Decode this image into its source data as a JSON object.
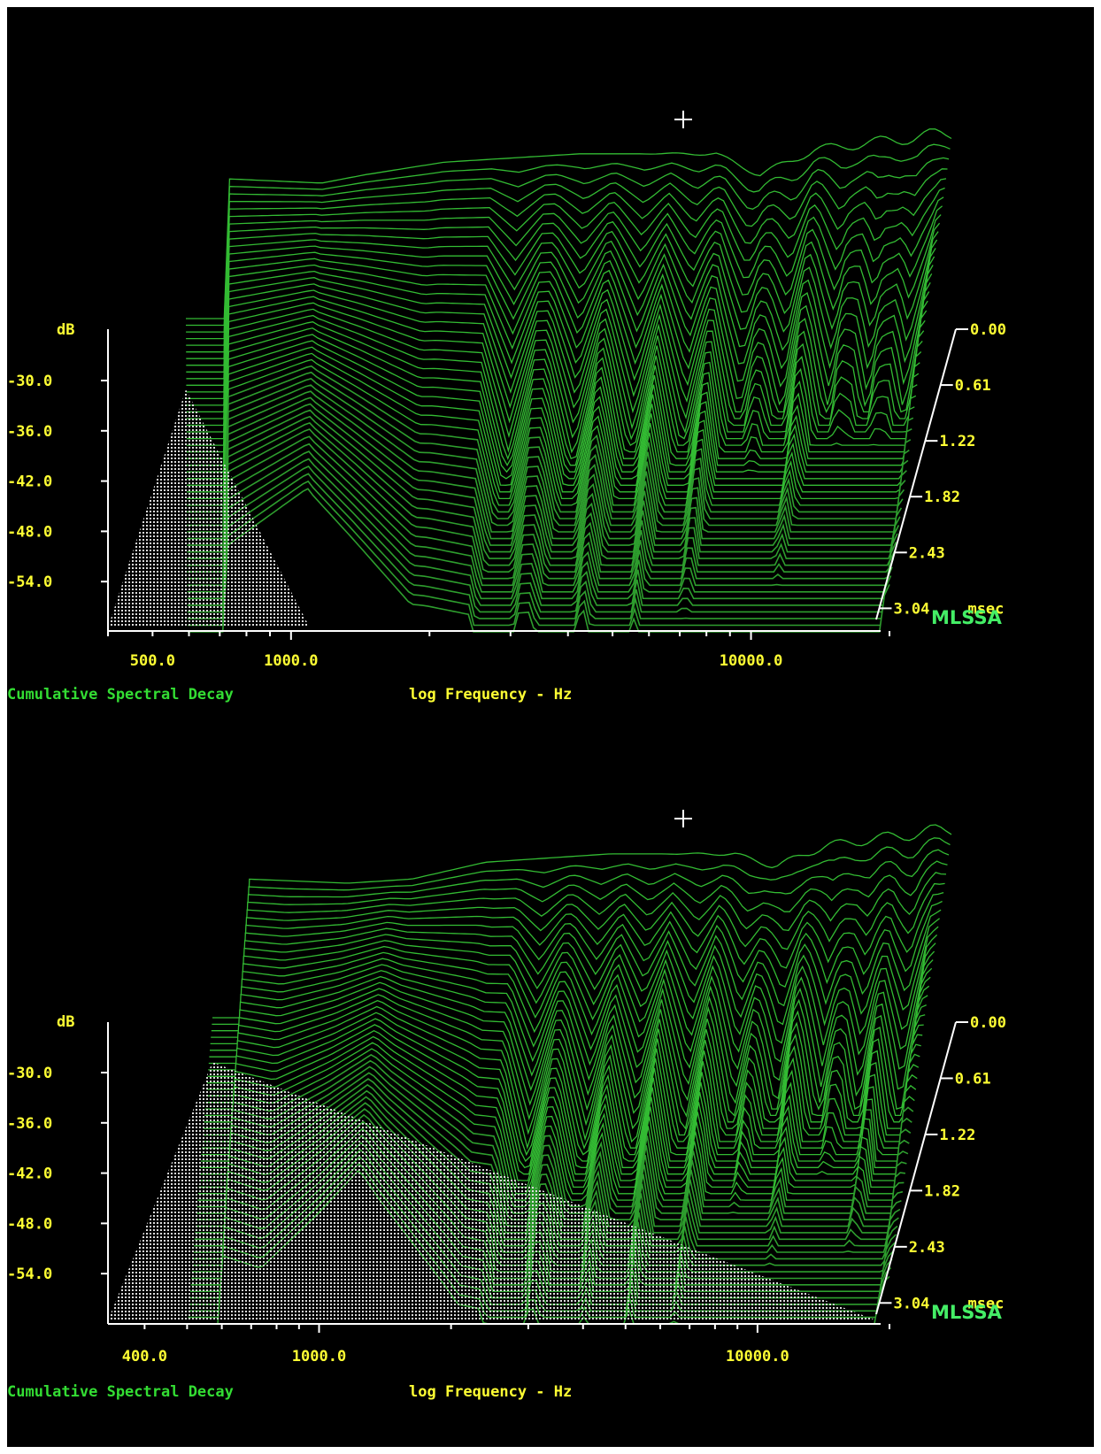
{
  "chart_data": [
    {
      "type": "waterfall",
      "title": "Cumulative Spectral Decay",
      "xlabel": "log Frequency - Hz",
      "x_scale": "log",
      "xlim": [
        400,
        20000
      ],
      "x_tick_labels": [
        "500.0",
        "1000.0",
        "10000.0"
      ],
      "y_unit_label": "dB",
      "ylim": [
        -60,
        -24
      ],
      "y_tick_labels": [
        "-30.0",
        "-36.0",
        "-42.0",
        "-48.0",
        "-54.0"
      ],
      "time_unit": "msec",
      "time_tick_labels": [
        "0.00",
        "0.61",
        "1.22",
        "1.82",
        "2.43",
        "3.04"
      ],
      "brand": "MLSSA",
      "grid": false,
      "legend": "none",
      "floor_frequency_hz": 500,
      "features": {
        "anchors": [
          [
            500,
            -26.5
          ],
          [
            800,
            -27
          ],
          [
            1000,
            -26
          ],
          [
            1500,
            -24.5
          ],
          [
            3000,
            -23.5
          ],
          [
            6000,
            -23.5
          ],
          [
            7500,
            -26
          ],
          [
            10000,
            -23
          ],
          [
            20000,
            -21
          ]
        ],
        "dips": [
          [
            2200,
            0.9
          ],
          [
            3100,
            1.0
          ],
          [
            4200,
            1.2
          ],
          [
            5500,
            1.3
          ],
          [
            7200,
            1.6
          ],
          [
            9000,
            1.8
          ],
          [
            11500,
            1.9
          ],
          [
            14000,
            2.0
          ],
          [
            17000,
            2.1
          ]
        ],
        "ridge_hz": 780,
        "ridge_strength": 0.85
      }
    },
    {
      "type": "waterfall",
      "title": "Cumulative Spectral Decay",
      "xlabel": "log Frequency - Hz",
      "x_scale": "log",
      "xlim": [
        330,
        20000
      ],
      "x_tick_labels": [
        "400.0",
        "1000.0",
        "10000.0"
      ],
      "y_unit_label": "dB",
      "ylim": [
        -60,
        -24
      ],
      "y_tick_labels": [
        "-30.0",
        "-36.0",
        "-42.0",
        "-48.0",
        "-54.0"
      ],
      "time_unit": "msec",
      "time_tick_labels": [
        "0.00",
        "0.61",
        "1.22",
        "1.82",
        "2.43",
        "3.04"
      ],
      "brand": "MLSSA",
      "grid": false,
      "legend": "none",
      "floor_frequency_hz": 400,
      "features": {
        "anchors": [
          [
            400,
            -27
          ],
          [
            700,
            -27.5
          ],
          [
            1000,
            -27
          ],
          [
            1500,
            -25
          ],
          [
            3000,
            -24
          ],
          [
            6000,
            -24
          ],
          [
            7500,
            -25.5
          ],
          [
            10000,
            -23
          ],
          [
            20000,
            -21
          ]
        ],
        "dips": [
          [
            2100,
            0.9
          ],
          [
            2900,
            1.0
          ],
          [
            3800,
            1.1
          ],
          [
            5000,
            1.3
          ],
          [
            6500,
            1.5
          ],
          [
            8200,
            1.7
          ],
          [
            10500,
            1.9
          ],
          [
            13000,
            2.0
          ],
          [
            16500,
            2.1
          ]
        ],
        "ridge_hz": 900,
        "ridge_strength": 1.0
      }
    }
  ]
}
